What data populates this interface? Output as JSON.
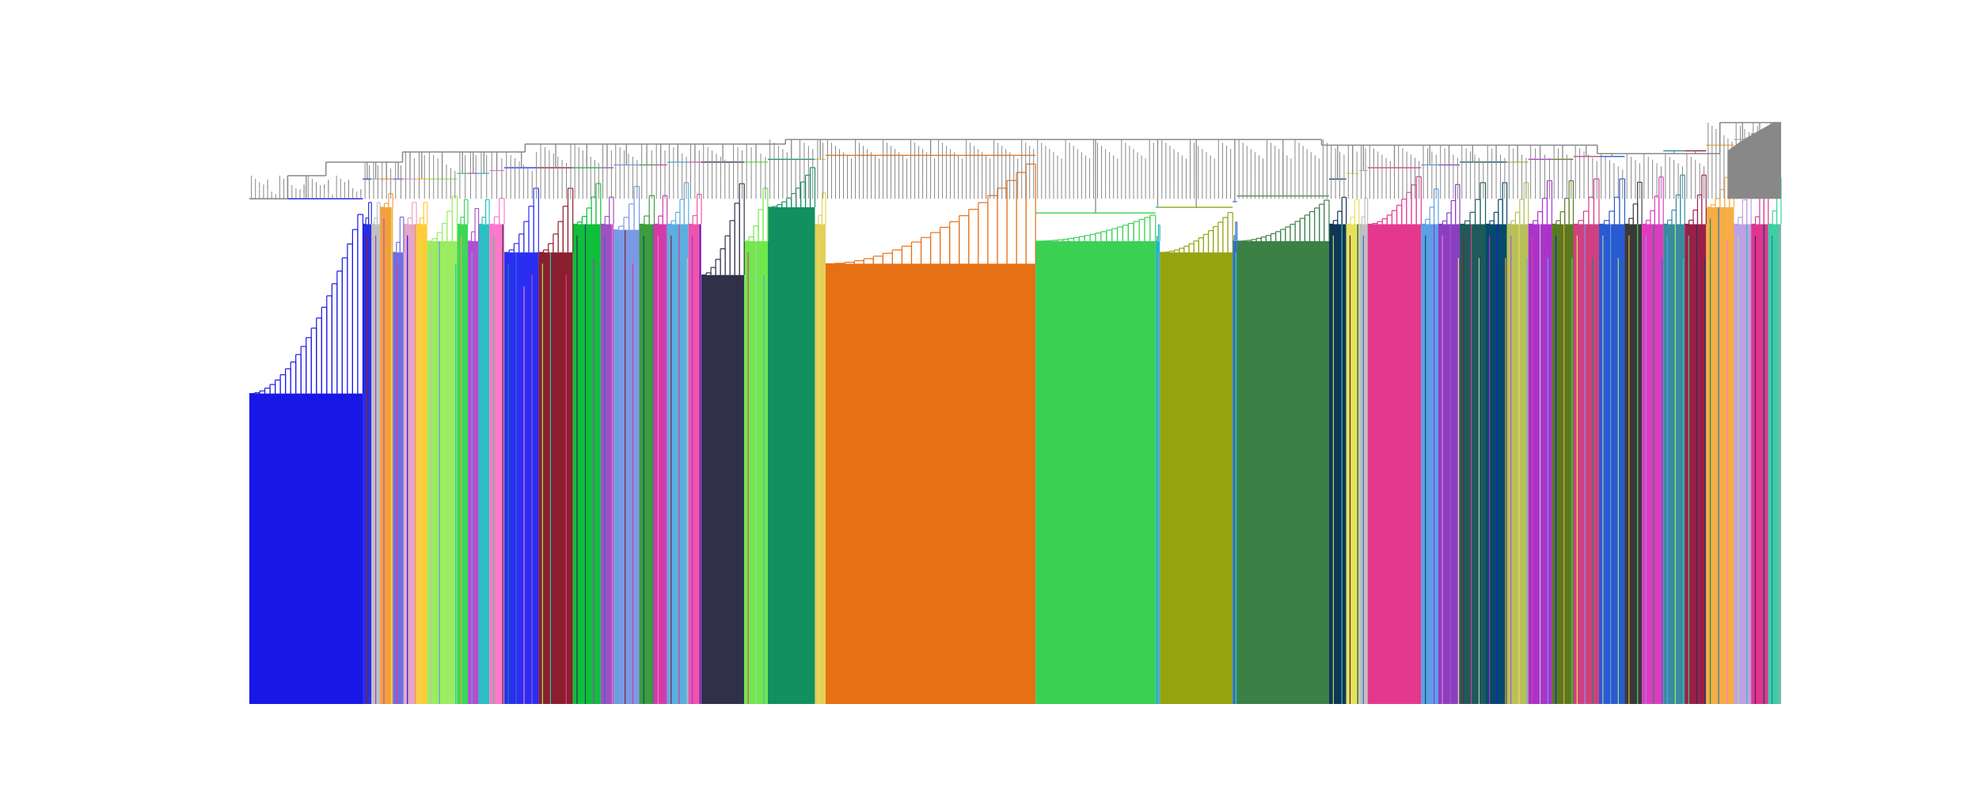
{
  "chart_data": {
    "type": "dendrogram",
    "title": "",
    "xlabel": "",
    "ylabel": "",
    "axes_visible": false,
    "grid": false,
    "legend": "none",
    "cut_height": 0.895,
    "above_cut_color": "#888888",
    "y_range": [
      0.0,
      1.03
    ],
    "root_height": 1.03,
    "leaf_count": 1212,
    "trunk_levels": [
      {
        "from": 0.0,
        "to": 0.025,
        "height": 0.895
      },
      {
        "from": 0.025,
        "to": 0.05,
        "height": 0.936
      },
      {
        "from": 0.05,
        "to": 0.1,
        "height": 0.96
      },
      {
        "from": 0.1,
        "to": 0.18,
        "height": 0.978
      },
      {
        "from": 0.18,
        "to": 0.35,
        "height": 0.992
      },
      {
        "from": 0.35,
        "to": 0.52,
        "height": 1.0
      },
      {
        "from": 0.52,
        "to": 0.7,
        "height": 1.0
      },
      {
        "from": 0.7,
        "to": 0.88,
        "height": 0.99
      },
      {
        "from": 0.88,
        "to": 0.96,
        "height": 0.975
      },
      {
        "from": 0.96,
        "to": 1.0,
        "height": 1.03
      }
    ],
    "clusters": [
      {
        "color": "#1a17e6",
        "span": 0.053,
        "top": 0.895,
        "base": 0.55
      },
      {
        "color": "#2a2ee0",
        "span": 0.004,
        "top": 0.93,
        "base": 0.85
      },
      {
        "color": "#c0c0c0",
        "span": 0.004,
        "top": 0.93,
        "base": 0.85
      },
      {
        "color": "#f3a03a",
        "span": 0.006,
        "top": 0.93,
        "base": 0.88
      },
      {
        "color": "#6f6fe0",
        "span": 0.005,
        "top": 0.93,
        "base": 0.8
      },
      {
        "color": "#e6a6c8",
        "span": 0.006,
        "top": 0.93,
        "base": 0.85
      },
      {
        "color": "#ffcc33",
        "span": 0.005,
        "top": 0.93,
        "base": 0.85
      },
      {
        "color": "#9bec61",
        "span": 0.014,
        "top": 0.93,
        "base": 0.82
      },
      {
        "color": "#3bd85a",
        "span": 0.005,
        "top": 0.94,
        "base": 0.85
      },
      {
        "color": "#b050d0",
        "span": 0.005,
        "top": 0.94,
        "base": 0.82
      },
      {
        "color": "#25c3c0",
        "span": 0.005,
        "top": 0.94,
        "base": 0.85
      },
      {
        "color": "#ff77cc",
        "span": 0.007,
        "top": 0.945,
        "base": 0.85
      },
      {
        "color": "#2a2ef2",
        "span": 0.016,
        "top": 0.95,
        "base": 0.8
      },
      {
        "color": "#8a1f2f",
        "span": 0.016,
        "top": 0.95,
        "base": 0.8
      },
      {
        "color": "#0fbf3a",
        "span": 0.013,
        "top": 0.95,
        "base": 0.85
      },
      {
        "color": "#a050c0",
        "span": 0.006,
        "top": 0.95,
        "base": 0.85
      },
      {
        "color": "#7a99e6",
        "span": 0.012,
        "top": 0.955,
        "base": 0.84
      },
      {
        "color": "#3c9d3c",
        "span": 0.007,
        "top": 0.955,
        "base": 0.85
      },
      {
        "color": "#d43aa6",
        "span": 0.006,
        "top": 0.955,
        "base": 0.85
      },
      {
        "color": "#5aaee0",
        "span": 0.01,
        "top": 0.96,
        "base": 0.85
      },
      {
        "color": "#ee55aa",
        "span": 0.006,
        "top": 0.96,
        "base": 0.85
      },
      {
        "color": "#30304a",
        "span": 0.02,
        "top": 0.96,
        "base": 0.76
      },
      {
        "color": "#6fe94a",
        "span": 0.011,
        "top": 0.96,
        "base": 0.82
      },
      {
        "color": "#129060",
        "span": 0.022,
        "top": 0.965,
        "base": 0.88
      },
      {
        "color": "#e5cf5a",
        "span": 0.005,
        "top": 0.965,
        "base": 0.85
      },
      {
        "color": "#e67014",
        "span": 0.098,
        "top": 0.972,
        "base": 0.78
      },
      {
        "color": "#3ad052",
        "span": 0.056,
        "top": 0.87,
        "base": 0.82
      },
      {
        "color": "#24b8c0",
        "span": 0.002,
        "top": 0.88,
        "base": 0.82
      },
      {
        "color": "#94a30f",
        "span": 0.034,
        "top": 0.88,
        "base": 0.8
      },
      {
        "color": "#2a6fd0",
        "span": 0.002,
        "top": 0.89,
        "base": 0.82
      },
      {
        "color": "#3b8045",
        "span": 0.043,
        "top": 0.9,
        "base": 0.82
      },
      {
        "color": "#123456",
        "span": 0.008,
        "top": 0.93,
        "base": 0.85
      },
      {
        "color": "#e6e05a",
        "span": 0.006,
        "top": 0.94,
        "base": 0.85
      },
      {
        "color": "#c0c0c0",
        "span": 0.004,
        "top": 0.945,
        "base": 0.85
      },
      {
        "color": "#e4388f",
        "span": 0.025,
        "top": 0.95,
        "base": 0.85
      },
      {
        "color": "#5aa0e6",
        "span": 0.008,
        "top": 0.955,
        "base": 0.85
      },
      {
        "color": "#8a3fc0",
        "span": 0.01,
        "top": 0.955,
        "base": 0.85
      },
      {
        "color": "#1e5a5a",
        "span": 0.012,
        "top": 0.96,
        "base": 0.85
      },
      {
        "color": "#064a6a",
        "span": 0.01,
        "top": 0.96,
        "base": 0.85
      },
      {
        "color": "#b8c05a",
        "span": 0.01,
        "top": 0.96,
        "base": 0.85
      },
      {
        "color": "#aa33cc",
        "span": 0.011,
        "top": 0.965,
        "base": 0.85
      },
      {
        "color": "#5a7a1e",
        "span": 0.01,
        "top": 0.965,
        "base": 0.85
      },
      {
        "color": "#d04080",
        "span": 0.012,
        "top": 0.97,
        "base": 0.85
      },
      {
        "color": "#2a5ad0",
        "span": 0.012,
        "top": 0.97,
        "base": 0.85
      },
      {
        "color": "#3a3a3a",
        "span": 0.008,
        "top": 0.975,
        "base": 0.85
      },
      {
        "color": "#e03ac0",
        "span": 0.01,
        "top": 0.975,
        "base": 0.85
      },
      {
        "color": "#3a8aa0",
        "span": 0.01,
        "top": 0.98,
        "base": 0.85
      },
      {
        "color": "#9a1f4a",
        "span": 0.01,
        "top": 0.98,
        "base": 0.85
      },
      {
        "color": "#f7ad45",
        "span": 0.013,
        "top": 0.99,
        "base": 0.88
      },
      {
        "color": "#c0a0e6",
        "span": 0.008,
        "top": 1.0,
        "base": 0.85
      },
      {
        "color": "#e0358f",
        "span": 0.008,
        "top": 1.01,
        "base": 0.85
      },
      {
        "color": "#3ad0a0",
        "span": 0.006,
        "top": 1.02,
        "base": 0.85
      }
    ],
    "stripe_palette": [
      "#1a17e6",
      "#ff77cc",
      "#9bec61",
      "#f3a03a",
      "#b050d0",
      "#25c3c0",
      "#3bd85a",
      "#e6e05a",
      "#8a1f2f",
      "#30304a",
      "#7a99e6",
      "#e4388f",
      "#064a6a",
      "#129060",
      "#c0c0c0",
      "#aa33cc",
      "#2a6fd0",
      "#5aa0e6"
    ]
  }
}
